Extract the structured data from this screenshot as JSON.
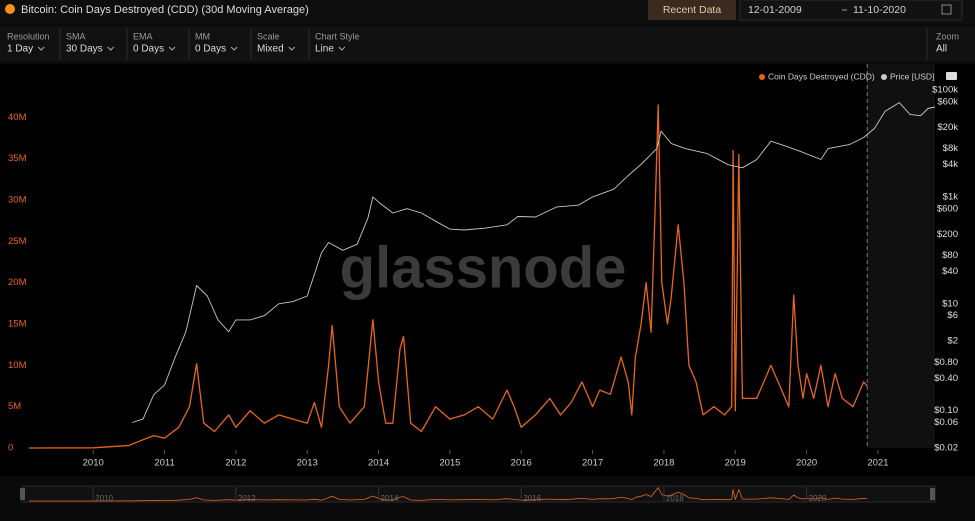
{
  "header": {
    "title": "Bitcoin: Coin Days Destroyed (CDD) (30d Moving Average)",
    "button": "Recent Data",
    "date_from": "12-01-2009",
    "date_to": "11-10-2020"
  },
  "toolbar": [
    {
      "label": "Resolution",
      "value": "1 Day"
    },
    {
      "label": "SMA",
      "value": "30 Days"
    },
    {
      "label": "EMA",
      "value": "0 Days"
    },
    {
      "label": "MM",
      "value": "0 Days"
    },
    {
      "label": "Scale",
      "value": "Mixed"
    },
    {
      "label": "Chart Style",
      "value": "Line"
    }
  ],
  "zoom": {
    "label": "Zoom",
    "value": "All"
  },
  "chart_data": {
    "type": "line",
    "watermark": "glassnode",
    "legend": "top-right",
    "xlim": [
      2009.1,
      2021.8
    ],
    "xticks": [
      2010,
      2011,
      2012,
      2013,
      2014,
      2015,
      2016,
      2017,
      2018,
      2019,
      2020,
      2021
    ],
    "ylim": [
      0,
      43300000
    ],
    "yticks": [
      0,
      {
        "value": 5000000,
        "label": "5M"
      },
      {
        "value": 10000000,
        "label": "10M"
      },
      {
        "value": 15000000,
        "label": "15M"
      },
      {
        "value": 20000000,
        "label": "20M"
      },
      {
        "value": 25000000,
        "label": "25M"
      },
      {
        "value": 30000000,
        "label": "30M"
      },
      {
        "value": 35000000,
        "label": "35M"
      },
      {
        "value": 40000000,
        "label": "40M"
      }
    ],
    "y2scale": "log",
    "y2lim": [
      0.02,
      100000
    ],
    "y2ticks": [
      {
        "value": 0.02,
        "label": "$0.02"
      },
      {
        "value": 0.06,
        "label": "$0.06"
      },
      {
        "value": 0.1,
        "label": "$0.10"
      },
      {
        "value": 0.4,
        "label": "$0.40"
      },
      {
        "value": 0.8,
        "label": "$0.80"
      },
      {
        "value": 2,
        "label": "$2"
      },
      {
        "value": 6,
        "label": "$6"
      },
      {
        "value": 10,
        "label": "$10"
      },
      {
        "value": 40,
        "label": "$40"
      },
      {
        "value": 80,
        "label": "$80"
      },
      {
        "value": 200,
        "label": "$200"
      },
      {
        "value": 600,
        "label": "$600"
      },
      {
        "value": 1000,
        "label": "$1k"
      },
      {
        "value": 4000,
        "label": "$4k"
      },
      {
        "value": 8000,
        "label": "$8k"
      },
      {
        "value": 20000,
        "label": "$20k"
      },
      {
        "value": 60000,
        "label": "$60k"
      },
      {
        "value": 100000,
        "label": "$100k"
      }
    ],
    "series": [
      {
        "name": "Coin Days Destroyed (CDD)",
        "color": "#e8661a",
        "axis": "y",
        "x": [
          2009.1,
          2010.0,
          2010.5,
          2010.7,
          2010.85,
          2011.0,
          2011.2,
          2011.35,
          2011.45,
          2011.55,
          2011.7,
          2011.9,
          2012.0,
          2012.2,
          2012.4,
          2012.6,
          2012.8,
          2013.0,
          2013.1,
          2013.2,
          2013.3,
          2013.35,
          2013.45,
          2013.6,
          2013.8,
          2013.88,
          2013.92,
          2014.0,
          2014.1,
          2014.2,
          2014.3,
          2014.35,
          2014.45,
          2014.6,
          2014.8,
          2015.0,
          2015.2,
          2015.4,
          2015.6,
          2015.8,
          2015.9,
          2016.0,
          2016.2,
          2016.4,
          2016.55,
          2016.7,
          2016.85,
          2017.0,
          2017.1,
          2017.25,
          2017.4,
          2017.5,
          2017.55,
          2017.6,
          2017.68,
          2017.75,
          2017.82,
          2017.88,
          2017.92,
          2017.97,
          2018.05,
          2018.1,
          2018.2,
          2018.28,
          2018.35,
          2018.45,
          2018.55,
          2018.7,
          2018.85,
          2018.95,
          2018.97,
          2019.0,
          2019.05,
          2019.1,
          2019.3,
          2019.5,
          2019.6,
          2019.75,
          2019.82,
          2019.88,
          2019.95,
          2020.0,
          2020.1,
          2020.2,
          2020.3,
          2020.4,
          2020.5,
          2020.65,
          2020.75,
          2020.8,
          2020.85
        ],
        "values": [
          0,
          20000,
          300000,
          1000000,
          1500000,
          1200000,
          2500000,
          5000000,
          10200000,
          3000000,
          2000000,
          4000000,
          2500000,
          4500000,
          3000000,
          4000000,
          3500000,
          3000000,
          5500000,
          2500000,
          10000000,
          14800000,
          5000000,
          3000000,
          5000000,
          12000000,
          15500000,
          8000000,
          3000000,
          3000000,
          12000000,
          13500000,
          3000000,
          2000000,
          5000000,
          3500000,
          4000000,
          5000000,
          3500000,
          7000000,
          5000000,
          2500000,
          4000000,
          6000000,
          4000000,
          5500000,
          8000000,
          5000000,
          7000000,
          6500000,
          11000000,
          8000000,
          4000000,
          11000000,
          15000000,
          20000000,
          14000000,
          30000000,
          41500000,
          20000000,
          15000000,
          18000000,
          27000000,
          20000000,
          10000000,
          8000000,
          4000000,
          5000000,
          4000000,
          5000000,
          36000000,
          4500000,
          35500000,
          6000000,
          6000000,
          10000000,
          8000000,
          5000000,
          18500000,
          10000000,
          6000000,
          9000000,
          6000000,
          10000000,
          5000000,
          9000000,
          6000000,
          5000000,
          7000000,
          8000000,
          7500000
        ]
      },
      {
        "name": "Price [USD]",
        "color": "#c8c8c8",
        "axis": "y2",
        "x": [
          2010.55,
          2010.7,
          2010.85,
          2011.0,
          2011.15,
          2011.3,
          2011.45,
          2011.6,
          2011.75,
          2011.9,
          2012.0,
          2012.2,
          2012.4,
          2012.6,
          2012.8,
          2013.0,
          2013.2,
          2013.3,
          2013.5,
          2013.7,
          2013.85,
          2013.92,
          2014.0,
          2014.2,
          2014.4,
          2014.6,
          2014.8,
          2015.0,
          2015.2,
          2015.5,
          2015.8,
          2015.95,
          2016.2,
          2016.5,
          2016.8,
          2017.0,
          2017.3,
          2017.5,
          2017.7,
          2017.9,
          2017.96,
          2018.1,
          2018.3,
          2018.6,
          2018.9,
          2019.1,
          2019.3,
          2019.5,
          2019.7,
          2019.9,
          2020.2,
          2020.3,
          2020.6,
          2020.8,
          2020.95,
          2021.1,
          2021.3,
          2021.45,
          2021.6,
          2021.7,
          2021.8
        ],
        "values": [
          0.06,
          0.07,
          0.2,
          0.3,
          1,
          3,
          22,
          14,
          5,
          3,
          5,
          5,
          6,
          10,
          11,
          14,
          90,
          140,
          100,
          130,
          400,
          1000,
          800,
          500,
          600,
          500,
          350,
          250,
          240,
          260,
          300,
          430,
          420,
          650,
          700,
          1000,
          1400,
          2500,
          4300,
          8000,
          17000,
          10000,
          8000,
          6500,
          4000,
          3500,
          5000,
          11000,
          9000,
          7200,
          5000,
          8000,
          9500,
          13000,
          19000,
          40000,
          58000,
          35000,
          33000,
          45000,
          48000
        ]
      }
    ]
  },
  "navigator": {
    "xticks": [
      2010,
      2012,
      2014,
      2016,
      2018,
      2020
    ]
  }
}
